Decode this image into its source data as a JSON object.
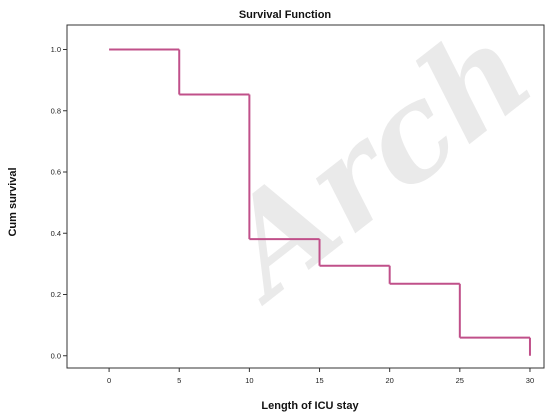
{
  "chart_data": {
    "type": "line",
    "style": "step",
    "title": "Survival Function",
    "xlabel": "Length of ICU stay",
    "ylabel": "Cum survival",
    "xlim": [
      -3,
      31
    ],
    "ylim": [
      -0.04,
      1.08
    ],
    "xticks": [
      0,
      5,
      10,
      15,
      20,
      25,
      30
    ],
    "yticks": [
      0.0,
      0.2,
      0.4,
      0.6,
      0.8,
      1.0
    ],
    "ytick_labels": [
      "0.0",
      "0.2",
      "0.4",
      "0.6",
      "0.8",
      "1.0"
    ],
    "grid": false,
    "legend": "none",
    "series": [
      {
        "color": "#c0508a",
        "x": [
          0,
          5,
          10,
          15,
          20,
          25,
          30
        ],
        "y": [
          1.0,
          0.853,
          0.381,
          0.294,
          0.235,
          0.059,
          0.0
        ]
      }
    ]
  },
  "watermark": "Arch"
}
